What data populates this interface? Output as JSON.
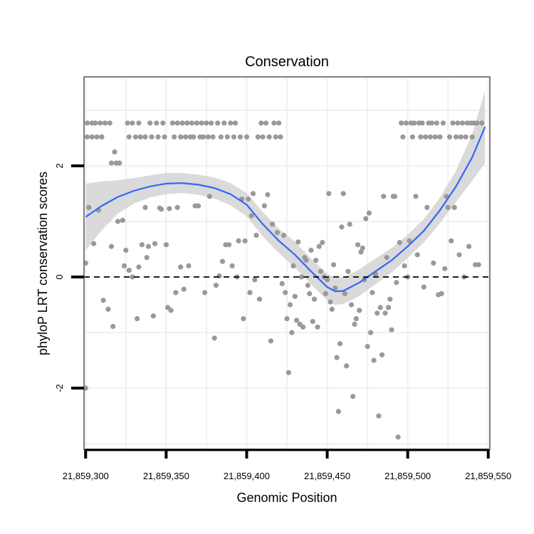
{
  "chart_data": {
    "type": "scatter",
    "title": "Conservation",
    "xlabel": "Genomic Position",
    "ylabel": "phyloP LRT conservation scores",
    "xlim": [
      21859299,
      21859551
    ],
    "ylim": [
      -3.1,
      3.6
    ],
    "x_ticks": [
      21859300,
      21859350,
      21859400,
      21859450,
      21859500,
      21859550
    ],
    "x_tick_labels": [
      "21,859,300",
      "21,859,350",
      "21,859,400",
      "21,859,450",
      "21,859,500",
      "21,859,550"
    ],
    "y_ticks": [
      -2,
      0,
      2
    ],
    "y_tick_labels": [
      "-2",
      "0",
      "2"
    ],
    "grid": true,
    "reference_line": {
      "y": 0,
      "style": "dashed",
      "color": "#000000"
    },
    "colors": {
      "points": "#999999",
      "smooth": "#3366ff",
      "ribbon": "#d3d3d3",
      "panel_border": "#7f7f7f",
      "grid": "#f0f0f0"
    },
    "points": [
      [
        21859300,
        -2.0
      ],
      [
        21859300,
        0.25
      ],
      [
        21859301,
        2.77
      ],
      [
        21859301,
        2.52
      ],
      [
        21859302,
        1.25
      ],
      [
        21859304,
        2.52
      ],
      [
        21859304,
        2.77
      ],
      [
        21859305,
        0.6
      ],
      [
        21859306,
        2.77
      ],
      [
        21859307,
        2.52
      ],
      [
        21859308,
        1.2
      ],
      [
        21859309,
        2.77
      ],
      [
        21859310,
        2.52
      ],
      [
        21859311,
        -0.42
      ],
      [
        21859312,
        2.77
      ],
      [
        21859314,
        -0.58
      ],
      [
        21859315,
        2.77
      ],
      [
        21859316,
        2.05
      ],
      [
        21859316,
        0.55
      ],
      [
        21859317,
        -0.89
      ],
      [
        21859318,
        2.25
      ],
      [
        21859319,
        2.05
      ],
      [
        21859320,
        1.0
      ],
      [
        21859321,
        2.05
      ],
      [
        21859323,
        1.02
      ],
      [
        21859324,
        0.2
      ],
      [
        21859325,
        0.48
      ],
      [
        21859326,
        2.77
      ],
      [
        21859327,
        2.52
      ],
      [
        21859327,
        0.12
      ],
      [
        21859329,
        0.0
      ],
      [
        21859329,
        2.77
      ],
      [
        21859331,
        2.52
      ],
      [
        21859332,
        -0.75
      ],
      [
        21859333,
        0.18
      ],
      [
        21859333,
        2.77
      ],
      [
        21859334,
        2.52
      ],
      [
        21859335,
        0.58
      ],
      [
        21859337,
        1.25
      ],
      [
        21859337,
        2.52
      ],
      [
        21859338,
        0.35
      ],
      [
        21859339,
        0.55
      ],
      [
        21859340,
        2.77
      ],
      [
        21859341,
        2.52
      ],
      [
        21859342,
        -0.7
      ],
      [
        21859343,
        0.6
      ],
      [
        21859344,
        2.77
      ],
      [
        21859345,
        2.52
      ],
      [
        21859346,
        1.24
      ],
      [
        21859347,
        1.22
      ],
      [
        21859348,
        2.77
      ],
      [
        21859349,
        2.52
      ],
      [
        21859350,
        0.58
      ],
      [
        21859351,
        -0.55
      ],
      [
        21859352,
        1.23
      ],
      [
        21859353,
        -0.6
      ],
      [
        21859354,
        2.77
      ],
      [
        21859355,
        2.52
      ],
      [
        21859356,
        -0.28
      ],
      [
        21859357,
        1.25
      ],
      [
        21859357,
        2.77
      ],
      [
        21859359,
        0.18
      ],
      [
        21859359,
        2.52
      ],
      [
        21859360,
        2.77
      ],
      [
        21859361,
        -0.22
      ],
      [
        21859362,
        2.52
      ],
      [
        21859363,
        2.77
      ],
      [
        21859364,
        0.2
      ],
      [
        21859365,
        2.52
      ],
      [
        21859366,
        2.77
      ],
      [
        21859367,
        2.52
      ],
      [
        21859368,
        1.28
      ],
      [
        21859369,
        2.77
      ],
      [
        21859370,
        1.28
      ],
      [
        21859371,
        2.52
      ],
      [
        21859372,
        2.77
      ],
      [
        21859373,
        2.52
      ],
      [
        21859374,
        -0.28
      ],
      [
        21859375,
        2.77
      ],
      [
        21859376,
        2.52
      ],
      [
        21859377,
        1.45
      ],
      [
        21859378,
        2.77
      ],
      [
        21859379,
        2.52
      ],
      [
        21859380,
        -1.1
      ],
      [
        21859381,
        -0.15
      ],
      [
        21859382,
        2.77
      ],
      [
        21859383,
        0.02
      ],
      [
        21859384,
        2.52
      ],
      [
        21859385,
        0.28
      ],
      [
        21859386,
        2.77
      ],
      [
        21859387,
        0.58
      ],
      [
        21859388,
        2.52
      ],
      [
        21859389,
        0.58
      ],
      [
        21859390,
        2.77
      ],
      [
        21859391,
        0.2
      ],
      [
        21859392,
        2.52
      ],
      [
        21859393,
        2.77
      ],
      [
        21859394,
        0.0
      ],
      [
        21859395,
        0.65
      ],
      [
        21859396,
        2.52
      ],
      [
        21859397,
        1.4
      ],
      [
        21859398,
        -0.75
      ],
      [
        21859399,
        0.65
      ],
      [
        21859400,
        2.52
      ],
      [
        21859401,
        1.4
      ],
      [
        21859402,
        -0.28
      ],
      [
        21859403,
        1.1
      ],
      [
        21859404,
        1.5
      ],
      [
        21859405,
        -0.05
      ],
      [
        21859406,
        0.75
      ],
      [
        21859407,
        2.52
      ],
      [
        21859408,
        -0.4
      ],
      [
        21859409,
        2.77
      ],
      [
        21859410,
        2.52
      ],
      [
        21859411,
        1.28
      ],
      [
        21859412,
        2.77
      ],
      [
        21859413,
        1.48
      ],
      [
        21859414,
        2.52
      ],
      [
        21859415,
        -1.15
      ],
      [
        21859416,
        0.95
      ],
      [
        21859417,
        2.77
      ],
      [
        21859418,
        2.52
      ],
      [
        21859419,
        0.8
      ],
      [
        21859420,
        2.77
      ],
      [
        21859421,
        2.52
      ],
      [
        21859422,
        -0.12
      ],
      [
        21859423,
        0.75
      ],
      [
        21859424,
        -0.28
      ],
      [
        21859425,
        -0.75
      ],
      [
        21859426,
        -1.72
      ],
      [
        21859427,
        -0.5
      ],
      [
        21859428,
        -1.0
      ],
      [
        21859429,
        0.2
      ],
      [
        21859430,
        -0.35
      ],
      [
        21859431,
        -0.78
      ],
      [
        21859432,
        0.63
      ],
      [
        21859433,
        -0.85
      ],
      [
        21859434,
        0.0
      ],
      [
        21859435,
        -0.9
      ],
      [
        21859436,
        0.35
      ],
      [
        21859437,
        0.3
      ],
      [
        21859438,
        -0.15
      ],
      [
        21859439,
        -0.3
      ],
      [
        21859440,
        0.48
      ],
      [
        21859441,
        -0.8
      ],
      [
        21859442,
        -0.4
      ],
      [
        21859443,
        0.3
      ],
      [
        21859444,
        -0.9
      ],
      [
        21859445,
        0.55
      ],
      [
        21859446,
        0.1
      ],
      [
        21859447,
        0.62
      ],
      [
        21859448,
        0.0
      ],
      [
        21859449,
        -0.3
      ],
      [
        21859450,
        -0.05
      ],
      [
        21859451,
        1.5
      ],
      [
        21859452,
        -0.45
      ],
      [
        21859453,
        -0.58
      ],
      [
        21859454,
        0.22
      ],
      [
        21859455,
        -0.2
      ],
      [
        21859456,
        -1.45
      ],
      [
        21859457,
        -2.42
      ],
      [
        21859458,
        -1.2
      ],
      [
        21859459,
        0.9
      ],
      [
        21859460,
        1.5
      ],
      [
        21859461,
        -0.3
      ],
      [
        21859462,
        -1.6
      ],
      [
        21859463,
        0.1
      ],
      [
        21859464,
        0.95
      ],
      [
        21859465,
        -0.5
      ],
      [
        21859466,
        -2.15
      ],
      [
        21859467,
        -0.85
      ],
      [
        21859468,
        -0.75
      ],
      [
        21859469,
        0.58
      ],
      [
        21859470,
        -0.6
      ],
      [
        21859471,
        0.45
      ],
      [
        21859472,
        0.52
      ],
      [
        21859473,
        -0.05
      ],
      [
        21859474,
        1.05
      ],
      [
        21859475,
        -1.25
      ],
      [
        21859476,
        1.15
      ],
      [
        21859477,
        -1.0
      ],
      [
        21859478,
        -0.28
      ],
      [
        21859479,
        -1.5
      ],
      [
        21859480,
        0.05
      ],
      [
        21859481,
        -0.65
      ],
      [
        21859482,
        -2.5
      ],
      [
        21859483,
        -0.55
      ],
      [
        21859484,
        -1.4
      ],
      [
        21859485,
        1.45
      ],
      [
        21859486,
        -0.65
      ],
      [
        21859487,
        0.35
      ],
      [
        21859488,
        -0.55
      ],
      [
        21859489,
        -0.4
      ],
      [
        21859490,
        -0.95
      ],
      [
        21859491,
        1.45
      ],
      [
        21859492,
        1.45
      ],
      [
        21859493,
        -0.1
      ],
      [
        21859494,
        -2.88
      ],
      [
        21859495,
        0.62
      ],
      [
        21859496,
        2.77
      ],
      [
        21859497,
        2.52
      ],
      [
        21859498,
        0.2
      ],
      [
        21859499,
        2.77
      ],
      [
        21859500,
        0.0
      ],
      [
        21859501,
        0.65
      ],
      [
        21859502,
        2.77
      ],
      [
        21859503,
        2.52
      ],
      [
        21859504,
        2.77
      ],
      [
        21859505,
        1.45
      ],
      [
        21859506,
        0.4
      ],
      [
        21859507,
        2.77
      ],
      [
        21859508,
        2.52
      ],
      [
        21859509,
        2.77
      ],
      [
        21859510,
        -0.18
      ],
      [
        21859511,
        2.52
      ],
      [
        21859512,
        1.25
      ],
      [
        21859513,
        2.77
      ],
      [
        21859514,
        2.52
      ],
      [
        21859515,
        2.77
      ],
      [
        21859516,
        0.25
      ],
      [
        21859517,
        2.52
      ],
      [
        21859518,
        2.77
      ],
      [
        21859519,
        -0.32
      ],
      [
        21859520,
        2.52
      ],
      [
        21859521,
        -0.3
      ],
      [
        21859522,
        2.77
      ],
      [
        21859523,
        0.15
      ],
      [
        21859524,
        1.45
      ],
      [
        21859525,
        1.25
      ],
      [
        21859526,
        2.52
      ],
      [
        21859527,
        0.65
      ],
      [
        21859528,
        2.77
      ],
      [
        21859529,
        1.25
      ],
      [
        21859530,
        2.52
      ],
      [
        21859531,
        2.77
      ],
      [
        21859532,
        0.4
      ],
      [
        21859533,
        2.52
      ],
      [
        21859534,
        2.77
      ],
      [
        21859535,
        0.0
      ],
      [
        21859536,
        2.52
      ],
      [
        21859537,
        2.77
      ],
      [
        21859538,
        0.55
      ],
      [
        21859539,
        2.77
      ],
      [
        21859540,
        2.52
      ],
      [
        21859541,
        2.77
      ],
      [
        21859542,
        0.22
      ],
      [
        21859543,
        2.77
      ],
      [
        21859544,
        0.22
      ],
      [
        21859546,
        2.77
      ]
    ],
    "smooth": {
      "x": [
        21859300,
        21859310,
        21859320,
        21859330,
        21859340,
        21859350,
        21859360,
        21859370,
        21859380,
        21859390,
        21859400,
        21859410,
        21859420,
        21859430,
        21859440,
        21859450,
        21859455,
        21859460,
        21859470,
        21859480,
        21859490,
        21859500,
        21859510,
        21859520,
        21859530,
        21859540,
        21859548
      ],
      "y": [
        1.08,
        1.28,
        1.44,
        1.55,
        1.63,
        1.68,
        1.69,
        1.66,
        1.6,
        1.49,
        1.3,
        0.95,
        0.65,
        0.4,
        0.1,
        -0.18,
        -0.26,
        -0.25,
        -0.1,
        0.1,
        0.3,
        0.55,
        0.83,
        1.2,
        1.63,
        2.15,
        2.7
      ],
      "se": [
        0.6,
        0.44,
        0.3,
        0.23,
        0.2,
        0.19,
        0.18,
        0.18,
        0.19,
        0.2,
        0.21,
        0.22,
        0.22,
        0.23,
        0.23,
        0.24,
        0.24,
        0.24,
        0.24,
        0.23,
        0.22,
        0.21,
        0.21,
        0.23,
        0.28,
        0.42,
        0.65
      ]
    }
  }
}
